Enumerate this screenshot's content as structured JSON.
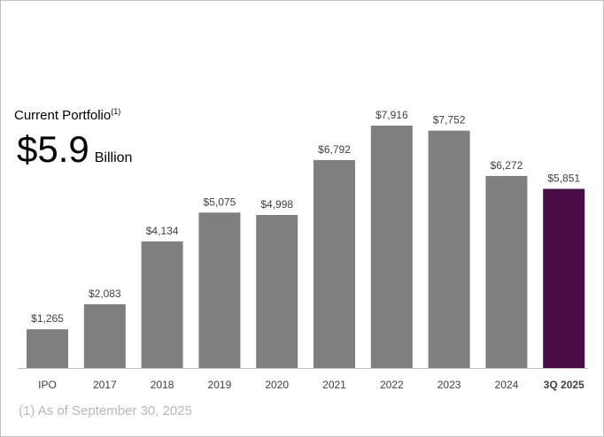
{
  "portfolio": {
    "title": "Current Portfolio",
    "title_note": "(1)",
    "amount": "$5.9",
    "unit": "Billion"
  },
  "footnote": "(1) As of September 30, 2025",
  "colors": {
    "bar": "#7f7f7f",
    "highlight": "#4a0c47",
    "axis": "#bfbfbf",
    "text": "#404040"
  },
  "chart_data": {
    "type": "bar",
    "categories": [
      "IPO",
      "2017",
      "2018",
      "2019",
      "2020",
      "2021",
      "2022",
      "2023",
      "2024",
      "3Q 2025"
    ],
    "values": [
      1265,
      2083,
      4134,
      5075,
      4998,
      6792,
      7916,
      7752,
      6272,
      5851
    ],
    "data_labels": [
      "$1,265",
      "$2,083",
      "$4,134",
      "$5,075",
      "$4,998",
      "$6,792",
      "$7,916",
      "$7,752",
      "$6,272",
      "$5,851"
    ],
    "highlight_category": "3Q 2025",
    "title": "",
    "xlabel": "",
    "ylabel": "",
    "ylim": [
      0,
      8200
    ],
    "grid": false,
    "legend": "none"
  }
}
